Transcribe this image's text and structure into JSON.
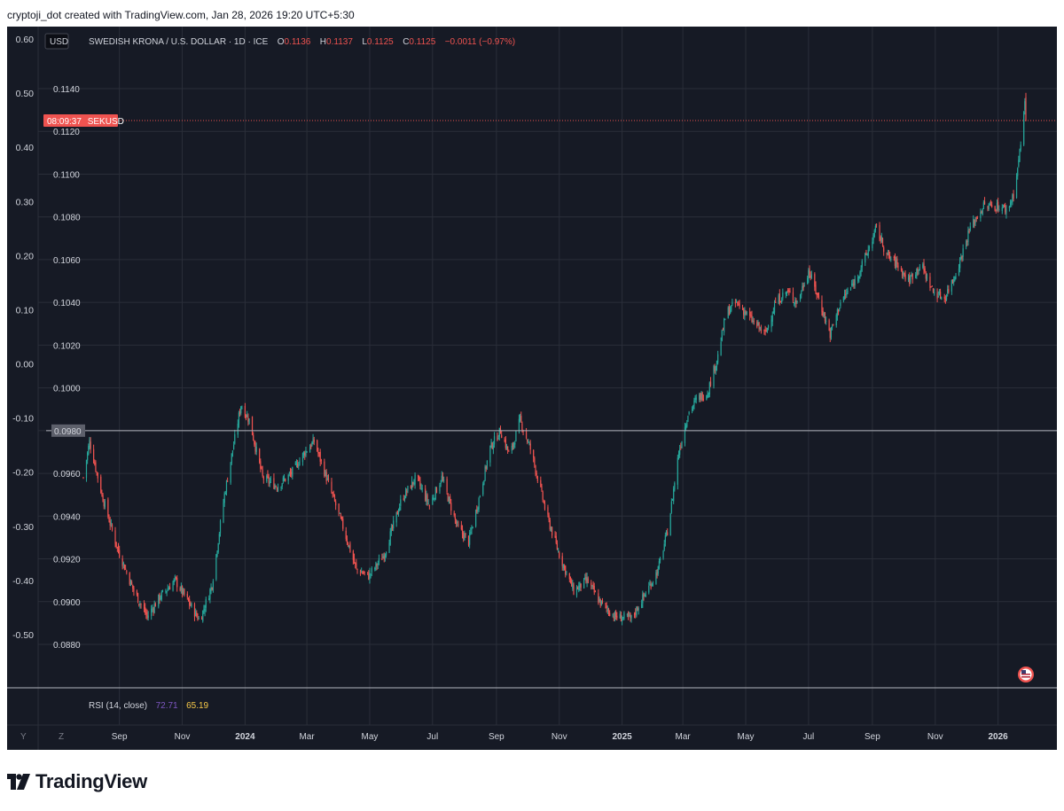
{
  "attribution": "cryptoji_dot created with TradingView.com, Jan 28, 2026 19:20 UTC+5:30",
  "brand": "TradingView",
  "header": {
    "currency_badge": "USD",
    "title": "SWEDISH KRONA / U.S. DOLLAR · 1D · ICE",
    "o_label": "O",
    "o_value": "0.1136",
    "h_label": "H",
    "h_value": "0.1137",
    "l_label": "L",
    "l_value": "0.1125",
    "c_label": "C",
    "c_value": "0.1125",
    "change": "−0.0011 (−0.97%)"
  },
  "price_tag": {
    "countdown": "08:09:37",
    "symbol": "SEKUSD"
  },
  "reference_tag": "0.0980",
  "rsi": {
    "label": "RSI (14, close)",
    "value1": "72.71",
    "value2": "65.19"
  },
  "timeframe_buttons": [
    "Y",
    "Z"
  ],
  "colors": {
    "background": "#161a25",
    "grid": "#2a2e39",
    "up": "#26a69a",
    "down": "#ef5350",
    "text": "#d1d4dc",
    "rsi_value1": "#7e57c2",
    "rsi_value2": "#f7c948",
    "price_line": "#ef5350"
  },
  "chart_data": {
    "type": "candlestick",
    "title": "SWEDISH KRONA / U.S. DOLLAR · 1D · ICE",
    "left_axis_ticks": [
      "0.60",
      "0.50",
      "0.40",
      "0.30",
      "0.20",
      "0.10",
      "0.00",
      "-0.10",
      "-0.20",
      "-0.30",
      "-0.40",
      "-0.50"
    ],
    "left_axis_range": [
      -0.5,
      0.6
    ],
    "price_ticks": [
      "0.1140",
      "0.1120",
      "0.1100",
      "0.1080",
      "0.1060",
      "0.1040",
      "0.1020",
      "0.1000",
      "0.0980",
      "0.0960",
      "0.0940",
      "0.0920",
      "0.0900",
      "0.0880"
    ],
    "price_range": [
      0.088,
      0.114
    ],
    "time_labels": [
      {
        "label": "Sep",
        "bold": false
      },
      {
        "label": "Nov",
        "bold": false
      },
      {
        "label": "2024",
        "bold": true
      },
      {
        "label": "Mar",
        "bold": false
      },
      {
        "label": "May",
        "bold": false
      },
      {
        "label": "Jul",
        "bold": false
      },
      {
        "label": "Sep",
        "bold": false
      },
      {
        "label": "Nov",
        "bold": false
      },
      {
        "label": "2025",
        "bold": true
      },
      {
        "label": "Mar",
        "bold": false
      },
      {
        "label": "May",
        "bold": false
      },
      {
        "label": "Jul",
        "bold": false
      },
      {
        "label": "Sep",
        "bold": false
      },
      {
        "label": "Nov",
        "bold": false
      },
      {
        "label": "2026",
        "bold": true
      }
    ],
    "last_close": 0.1125,
    "reference_level": 0.098,
    "grid": true,
    "close_path": [
      {
        "date": "2023-07-28",
        "close": 0.0958
      },
      {
        "date": "2023-08-03",
        "close": 0.0975
      },
      {
        "date": "2023-08-15",
        "close": 0.095
      },
      {
        "date": "2023-08-30",
        "close": 0.0925
      },
      {
        "date": "2023-09-15",
        "close": 0.0905
      },
      {
        "date": "2023-09-28",
        "close": 0.0893
      },
      {
        "date": "2023-10-10",
        "close": 0.0902
      },
      {
        "date": "2023-10-25",
        "close": 0.091
      },
      {
        "date": "2023-11-08",
        "close": 0.0899
      },
      {
        "date": "2023-11-18",
        "close": 0.0891
      },
      {
        "date": "2023-11-30",
        "close": 0.0908
      },
      {
        "date": "2023-12-12",
        "close": 0.095
      },
      {
        "date": "2023-12-28",
        "close": 0.0992
      },
      {
        "date": "2024-01-05",
        "close": 0.0985
      },
      {
        "date": "2024-01-18",
        "close": 0.0958
      },
      {
        "date": "2024-02-01",
        "close": 0.0954
      },
      {
        "date": "2024-02-15",
        "close": 0.096
      },
      {
        "date": "2024-02-28",
        "close": 0.097
      },
      {
        "date": "2024-03-08",
        "close": 0.0975
      },
      {
        "date": "2024-03-20",
        "close": 0.0958
      },
      {
        "date": "2024-04-05",
        "close": 0.0935
      },
      {
        "date": "2024-04-18",
        "close": 0.0915
      },
      {
        "date": "2024-04-30",
        "close": 0.0912
      },
      {
        "date": "2024-05-15",
        "close": 0.0922
      },
      {
        "date": "2024-06-01",
        "close": 0.0948
      },
      {
        "date": "2024-06-15",
        "close": 0.0958
      },
      {
        "date": "2024-06-28",
        "close": 0.0945
      },
      {
        "date": "2024-07-10",
        "close": 0.0958
      },
      {
        "date": "2024-07-25",
        "close": 0.0935
      },
      {
        "date": "2024-08-05",
        "close": 0.0928
      },
      {
        "date": "2024-08-15",
        "close": 0.0948
      },
      {
        "date": "2024-08-26",
        "close": 0.0972
      },
      {
        "date": "2024-09-05",
        "close": 0.098
      },
      {
        "date": "2024-09-14",
        "close": 0.0968
      },
      {
        "date": "2024-09-24",
        "close": 0.0985
      },
      {
        "date": "2024-10-05",
        "close": 0.097
      },
      {
        "date": "2024-10-20",
        "close": 0.094
      },
      {
        "date": "2024-11-01",
        "close": 0.0922
      },
      {
        "date": "2024-11-15",
        "close": 0.0905
      },
      {
        "date": "2024-11-28",
        "close": 0.091
      },
      {
        "date": "2024-12-10",
        "close": 0.09
      },
      {
        "date": "2024-12-25",
        "close": 0.0893
      },
      {
        "date": "2025-01-10",
        "close": 0.0892
      },
      {
        "date": "2025-01-25",
        "close": 0.0905
      },
      {
        "date": "2025-02-05",
        "close": 0.0915
      },
      {
        "date": "2025-02-15",
        "close": 0.0935
      },
      {
        "date": "2025-02-25",
        "close": 0.097
      },
      {
        "date": "2025-03-06",
        "close": 0.0988
      },
      {
        "date": "2025-03-15",
        "close": 0.0995
      },
      {
        "date": "2025-03-25",
        "close": 0.0998
      },
      {
        "date": "2025-04-04",
        "close": 0.1015
      },
      {
        "date": "2025-04-12",
        "close": 0.1035
      },
      {
        "date": "2025-04-22",
        "close": 0.104
      },
      {
        "date": "2025-05-01",
        "close": 0.1035
      },
      {
        "date": "2025-05-10",
        "close": 0.103
      },
      {
        "date": "2025-05-20",
        "close": 0.1025
      },
      {
        "date": "2025-05-30",
        "close": 0.104
      },
      {
        "date": "2025-06-10",
        "close": 0.1045
      },
      {
        "date": "2025-06-20",
        "close": 0.104
      },
      {
        "date": "2025-07-01",
        "close": 0.1055
      },
      {
        "date": "2025-07-12",
        "close": 0.104
      },
      {
        "date": "2025-07-22",
        "close": 0.1025
      },
      {
        "date": "2025-08-01",
        "close": 0.104
      },
      {
        "date": "2025-08-15",
        "close": 0.105
      },
      {
        "date": "2025-08-26",
        "close": 0.1062
      },
      {
        "date": "2025-09-05",
        "close": 0.1075
      },
      {
        "date": "2025-09-15",
        "close": 0.1062
      },
      {
        "date": "2025-09-25",
        "close": 0.1058
      },
      {
        "date": "2025-10-06",
        "close": 0.105
      },
      {
        "date": "2025-10-18",
        "close": 0.1058
      },
      {
        "date": "2025-10-30",
        "close": 0.1045
      },
      {
        "date": "2025-11-10",
        "close": 0.1042
      },
      {
        "date": "2025-11-22",
        "close": 0.1055
      },
      {
        "date": "2025-12-05",
        "close": 0.1075
      },
      {
        "date": "2025-12-18",
        "close": 0.1085
      },
      {
        "date": "2026-01-02",
        "close": 0.1085
      },
      {
        "date": "2026-01-10",
        "close": 0.1083
      },
      {
        "date": "2026-01-17",
        "close": 0.1092
      },
      {
        "date": "2026-01-22",
        "close": 0.111
      },
      {
        "date": "2026-01-26",
        "close": 0.1128
      },
      {
        "date": "2026-01-27",
        "close": 0.1136
      },
      {
        "date": "2026-01-28",
        "close": 0.1125
      }
    ]
  }
}
